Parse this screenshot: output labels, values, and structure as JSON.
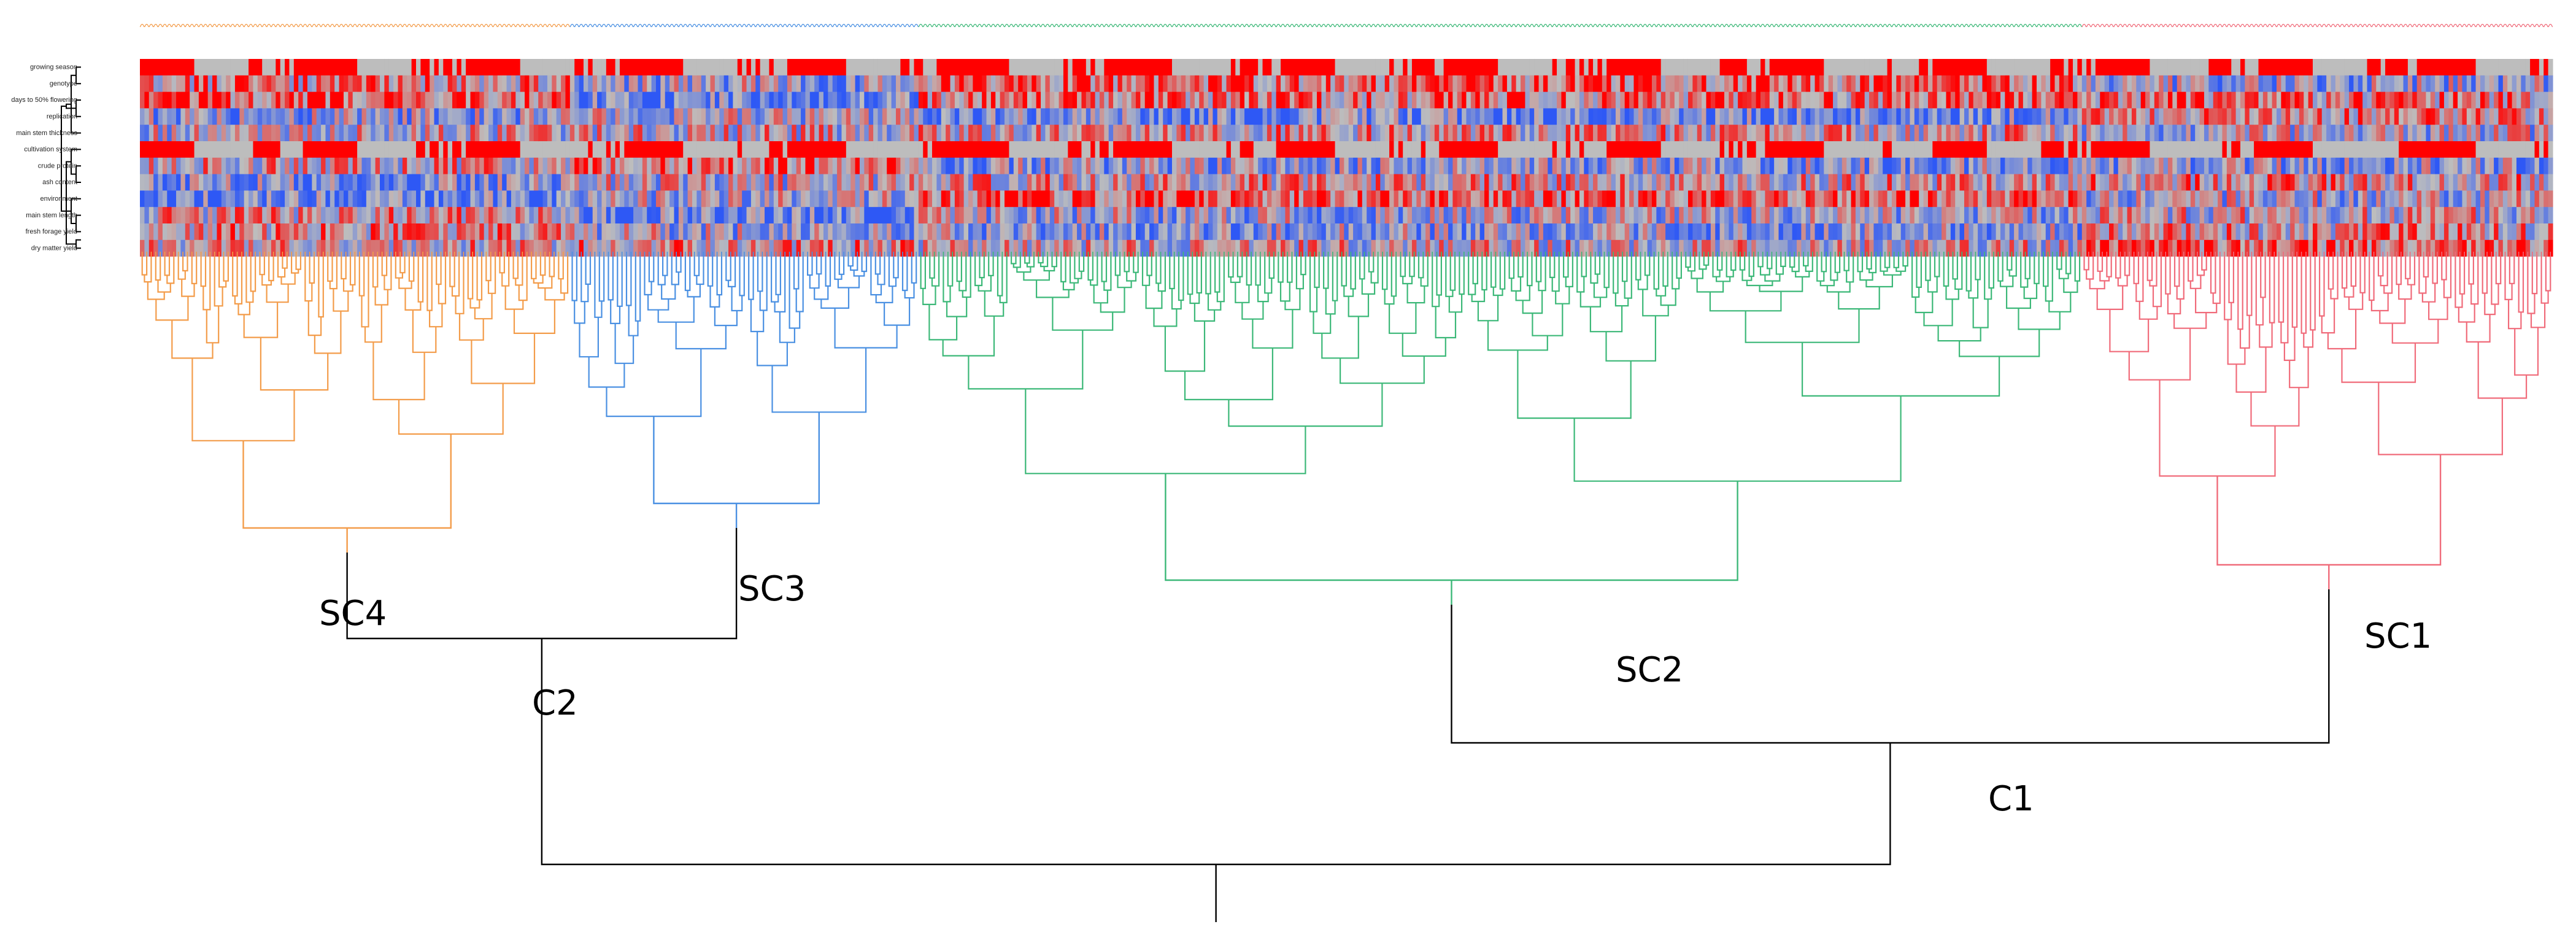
{
  "heatmap": {
    "row_labels": [
      "growing season",
      "genotype",
      "days to 50% flowering",
      "replication",
      "main stem thickness",
      "cultivation system",
      "crude protein",
      "ash content",
      "environment",
      "main stem length",
      "fresh forage yield",
      "dry matter yield"
    ],
    "colors": {
      "high": "#ff0000",
      "mid": "#bdbdbd",
      "low": "#2e58f5"
    }
  },
  "dendrogram": {
    "clusters": [
      {
        "label": "SC4",
        "color": "#f39c4a",
        "leaves": 95
      },
      {
        "label": "SC3",
        "color": "#4a90e2",
        "leaves": 77
      },
      {
        "label": "SC2",
        "color": "#3cb878",
        "leaves": 257
      },
      {
        "label": "SC1",
        "color": "#f06b7a",
        "leaves": 104
      }
    ],
    "major_labels": [
      "C2",
      "C1"
    ],
    "trunk_color": "#000000"
  }
}
